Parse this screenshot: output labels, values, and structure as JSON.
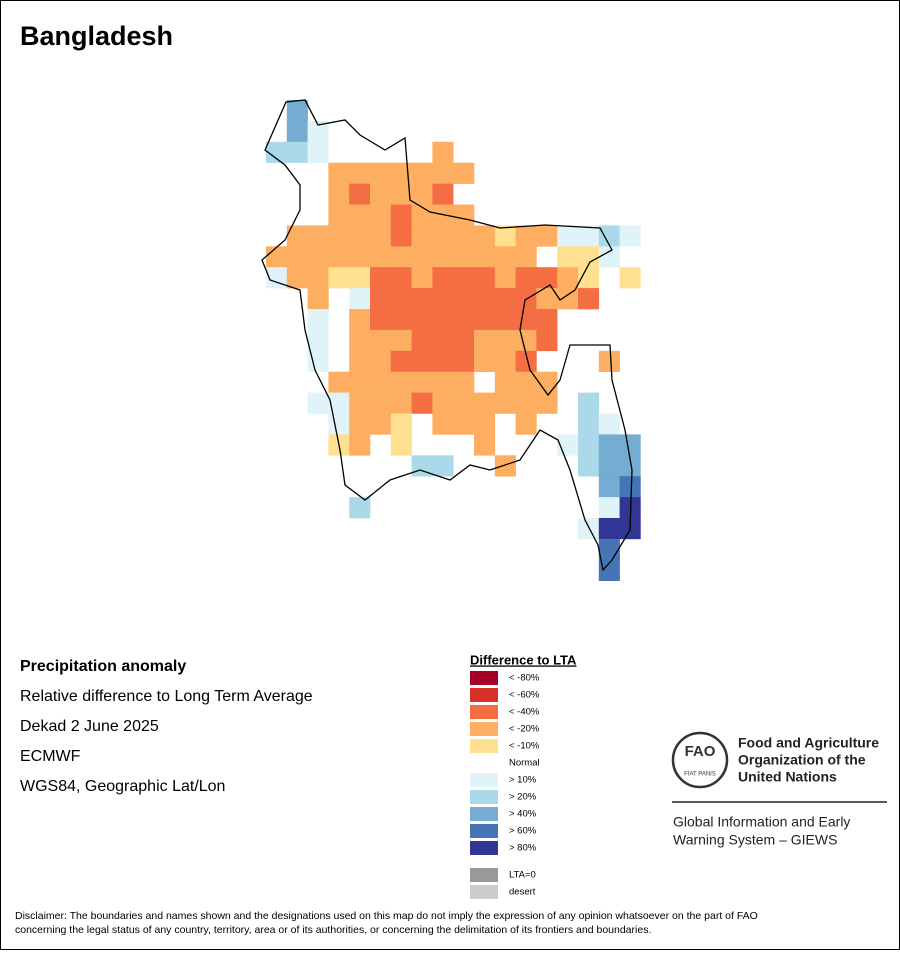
{
  "title": "Bangladesh",
  "info": {
    "heading": "Precipitation anomaly",
    "lines": [
      "Relative difference to Long Term Average",
      "Dekad 2 June 2025",
      "ECMWF",
      "WGS84, Geographic Lat/Lon"
    ]
  },
  "legend": {
    "title": "Difference to LTA",
    "items": [
      {
        "label": "< -80%",
        "color": "#a50026"
      },
      {
        "label": "< -60%",
        "color": "#d73027"
      },
      {
        "label": "< -40%",
        "color": "#f46d43"
      },
      {
        "label": "< -20%",
        "color": "#fdae61"
      },
      {
        "label": "< -10%",
        "color": "#fee090"
      },
      {
        "label": "Normal",
        "color": "#ffffff"
      },
      {
        "label": "> 10%",
        "color": "#e0f3f8"
      },
      {
        "label": "> 20%",
        "color": "#abd9e9"
      },
      {
        "label": "> 40%",
        "color": "#74add1"
      },
      {
        "label": "> 60%",
        "color": "#4575b4"
      },
      {
        "label": "> 80%",
        "color": "#313695"
      }
    ],
    "extra": [
      {
        "label": "LTA=0",
        "color": "#999999"
      },
      {
        "label": "desert",
        "color": "#cccccc"
      }
    ]
  },
  "logo": {
    "emblem": "FAO",
    "motto": "FIAT PANIS",
    "org": [
      "Food and Agriculture",
      "Organization of the",
      "United Nations"
    ],
    "system": [
      "Global Information and Early",
      "Warning System – GIEWS"
    ]
  },
  "disclaimer": [
    "Disclaimer: The boundaries and names shown and the designations used on this map do not imply the expression of any opinion whatsoever on the part of FAO",
    "concerning the legal status of any country, territory, area or of its authorities, or concerning the delimitation of its frontiers and boundaries."
  ]
}
